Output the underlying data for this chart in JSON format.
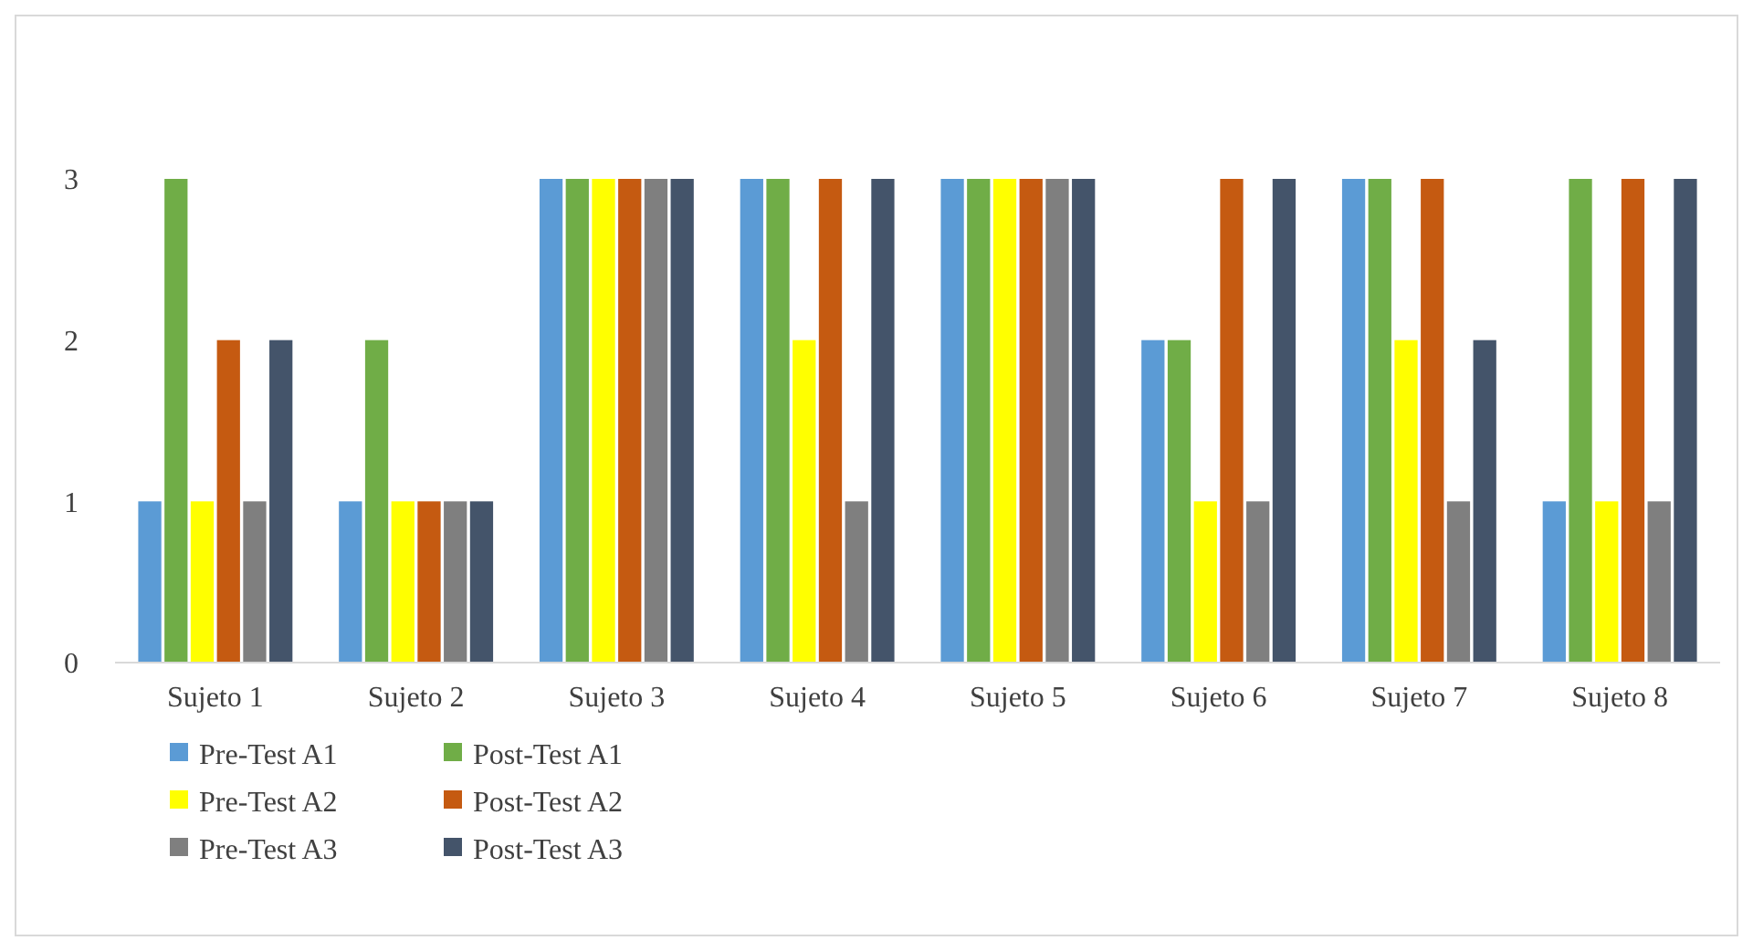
{
  "chart_data": {
    "type": "bar",
    "categories": [
      "Sujeto 1",
      "Sujeto 2",
      "Sujeto 3",
      "Sujeto 4",
      "Sujeto 5",
      "Sujeto 6",
      "Sujeto 7",
      "Sujeto 8"
    ],
    "series": [
      {
        "name": "Pre-Test A1",
        "color": "#5b9bd5",
        "values": [
          1,
          1,
          3,
          3,
          3,
          2,
          3,
          1
        ]
      },
      {
        "name": "Post-Test A1",
        "color": "#70ad47",
        "values": [
          3,
          2,
          3,
          3,
          3,
          2,
          3,
          3
        ]
      },
      {
        "name": "Pre-Test A2",
        "color": "#ffff00",
        "values": [
          1,
          1,
          3,
          2,
          3,
          1,
          2,
          1
        ]
      },
      {
        "name": "Post-Test A2",
        "color": "#c55a11",
        "values": [
          2,
          1,
          3,
          3,
          3,
          3,
          3,
          3
        ]
      },
      {
        "name": "Pre-Test A3",
        "color": "#7f7f7f",
        "values": [
          1,
          1,
          3,
          1,
          3,
          1,
          1,
          1
        ]
      },
      {
        "name": "Post-Test A3",
        "color": "#44546a",
        "values": [
          2,
          1,
          3,
          3,
          3,
          3,
          2,
          3
        ]
      }
    ],
    "ylim": [
      0,
      3
    ],
    "yticks": [
      0,
      1,
      2,
      3
    ],
    "grid": false,
    "legend": "bottom left"
  }
}
